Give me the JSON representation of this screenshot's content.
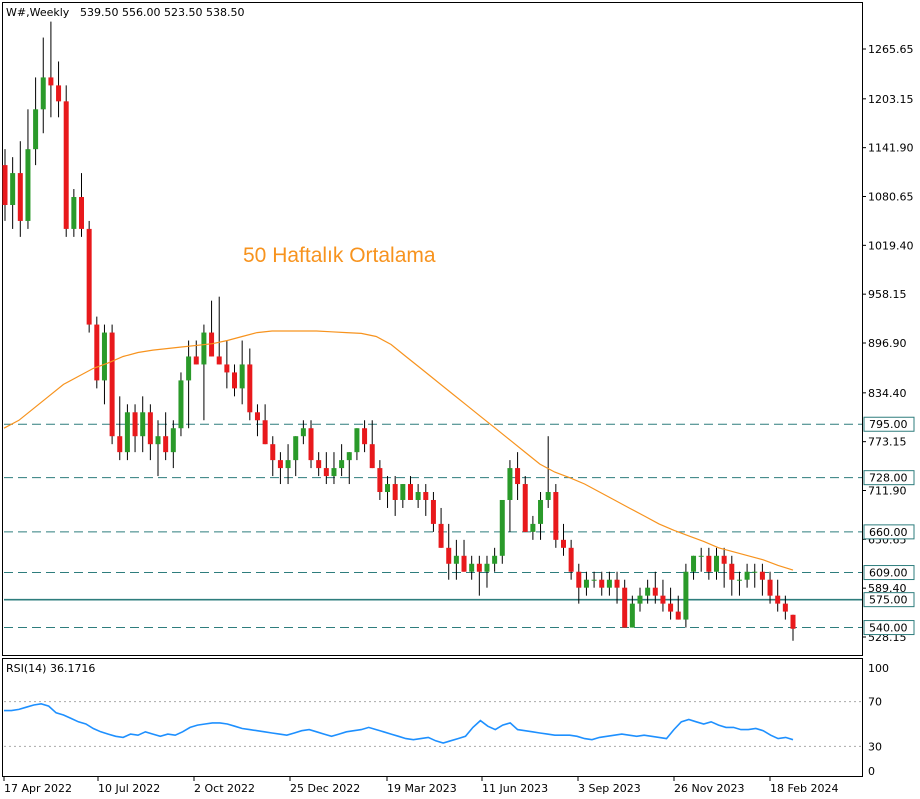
{
  "header": {
    "symbol": "W#,Weekly",
    "ohlc": "539.50 556.00 523.50 538.50"
  },
  "annotation": "50 Haftalık Ortalama",
  "rsi_label": "RSI(14) 36.1716",
  "colors": {
    "bull": "#2a9a2a",
    "bear": "#e8191c",
    "ma": "#f7931e",
    "level": "#2e7d7d",
    "rsi": "#1e90ff"
  },
  "chart_data": [
    {
      "type": "candlestick",
      "title": "W#,Weekly",
      "ylim": [
        510,
        1300
      ],
      "y_ticks": [
        "1265.65",
        "1203.15",
        "1141.90",
        "1080.65",
        "1019.40",
        "958.15",
        "896.90",
        "834.40",
        "773.15",
        "711.90",
        "650.65",
        "589.40",
        "528.15"
      ],
      "x_ticks": [
        "17 Apr 2022",
        "10 Jul 2022",
        "2 Oct 2022",
        "25 Dec 2022",
        "19 Mar 2023",
        "11 Jun 2023",
        "3 Sep 2023",
        "26 Nov 2023",
        "18 Feb 2024"
      ],
      "horizontal_levels": [
        {
          "value": 795.0,
          "label": "795.00",
          "style": "dashed"
        },
        {
          "value": 728.0,
          "label": "728.00",
          "style": "dashed"
        },
        {
          "value": 660.0,
          "label": "660.00",
          "style": "dashed"
        },
        {
          "value": 609.0,
          "label": "609.00",
          "style": "dashed"
        },
        {
          "value": 575.0,
          "label": "575.00",
          "style": "solid"
        },
        {
          "value": 540.0,
          "label": "540.00",
          "style": "dashed"
        }
      ],
      "candles": [
        [
          1120,
          1140,
          1050,
          1070
        ],
        [
          1070,
          1130,
          1040,
          1110
        ],
        [
          1110,
          1150,
          1030,
          1050
        ],
        [
          1050,
          1190,
          1040,
          1140
        ],
        [
          1140,
          1230,
          1120,
          1190
        ],
        [
          1190,
          1280,
          1160,
          1230
        ],
        [
          1230,
          1300,
          1180,
          1220
        ],
        [
          1220,
          1250,
          1180,
          1200
        ],
        [
          1200,
          1220,
          1030,
          1040
        ],
        [
          1040,
          1090,
          1030,
          1080
        ],
        [
          1080,
          1110,
          1030,
          1040
        ],
        [
          1040,
          1050,
          910,
          920
        ],
        [
          920,
          930,
          840,
          850
        ],
        [
          850,
          920,
          820,
          910
        ],
        [
          910,
          920,
          770,
          780
        ],
        [
          780,
          830,
          750,
          760
        ],
        [
          760,
          820,
          750,
          810
        ],
        [
          810,
          820,
          760,
          780
        ],
        [
          780,
          830,
          760,
          810
        ],
        [
          810,
          820,
          750,
          770
        ],
        [
          770,
          800,
          730,
          780
        ],
        [
          780,
          810,
          750,
          760
        ],
        [
          760,
          800,
          740,
          790
        ],
        [
          790,
          860,
          780,
          850
        ],
        [
          850,
          900,
          790,
          880
        ],
        [
          880,
          900,
          870,
          870
        ],
        [
          870,
          920,
          800,
          910
        ],
        [
          910,
          950,
          880,
          880
        ],
        [
          880,
          955,
          870,
          870
        ],
        [
          870,
          900,
          840,
          860
        ],
        [
          860,
          870,
          830,
          840
        ],
        [
          840,
          900,
          820,
          870
        ],
        [
          870,
          890,
          800,
          810
        ],
        [
          810,
          820,
          780,
          800
        ],
        [
          800,
          820,
          770,
          770
        ],
        [
          770,
          780,
          730,
          750
        ],
        [
          750,
          760,
          720,
          740
        ],
        [
          740,
          770,
          720,
          750
        ],
        [
          750,
          780,
          730,
          780
        ],
        [
          780,
          800,
          770,
          790
        ],
        [
          790,
          800,
          740,
          750
        ],
        [
          750,
          760,
          730,
          740
        ],
        [
          740,
          760,
          720,
          730
        ],
        [
          730,
          760,
          720,
          740
        ],
        [
          740,
          770,
          730,
          750
        ],
        [
          750,
          760,
          720,
          760
        ],
        [
          760,
          790,
          750,
          790
        ],
        [
          790,
          800,
          760,
          770
        ],
        [
          770,
          800,
          740,
          740
        ],
        [
          740,
          750,
          700,
          710
        ],
        [
          710,
          730,
          690,
          720
        ],
        [
          720,
          730,
          680,
          700
        ],
        [
          700,
          720,
          690,
          720
        ],
        [
          720,
          730,
          700,
          700
        ],
        [
          700,
          720,
          690,
          710
        ],
        [
          710,
          720,
          680,
          700
        ],
        [
          700,
          710,
          660,
          670
        ],
        [
          670,
          690,
          640,
          640
        ],
        [
          640,
          670,
          600,
          620
        ],
        [
          620,
          650,
          600,
          630
        ],
        [
          630,
          650,
          610,
          610
        ],
        [
          610,
          630,
          600,
          620
        ],
        [
          620,
          630,
          580,
          610
        ],
        [
          610,
          630,
          590,
          620
        ],
        [
          620,
          640,
          610,
          630
        ],
        [
          630,
          700,
          620,
          700
        ],
        [
          700,
          750,
          660,
          740
        ],
        [
          740,
          760,
          700,
          720
        ],
        [
          720,
          730,
          660,
          660
        ],
        [
          660,
          680,
          650,
          670
        ],
        [
          670,
          710,
          650,
          700
        ],
        [
          700,
          780,
          690,
          710
        ],
        [
          710,
          720,
          640,
          650
        ],
        [
          650,
          670,
          630,
          640
        ],
        [
          640,
          650,
          600,
          610
        ],
        [
          610,
          620,
          570,
          590
        ],
        [
          590,
          610,
          580,
          600
        ],
        [
          600,
          610,
          590,
          600
        ],
        [
          600,
          610,
          580,
          590
        ],
        [
          590,
          610,
          580,
          600
        ],
        [
          600,
          610,
          570,
          590
        ],
        [
          590,
          600,
          540,
          540
        ],
        [
          540,
          580,
          540,
          570
        ],
        [
          570,
          590,
          560,
          580
        ],
        [
          580,
          600,
          570,
          590
        ],
        [
          590,
          610,
          570,
          580
        ],
        [
          580,
          600,
          560,
          570
        ],
        [
          570,
          590,
          550,
          560
        ],
        [
          560,
          580,
          550,
          550
        ],
        [
          550,
          620,
          540,
          610
        ],
        [
          610,
          630,
          600,
          630
        ],
        [
          630,
          640,
          610,
          630
        ],
        [
          630,
          640,
          600,
          610
        ],
        [
          610,
          640,
          600,
          630
        ],
        [
          630,
          640,
          590,
          620
        ],
        [
          620,
          630,
          580,
          600
        ],
        [
          600,
          610,
          580,
          600
        ],
        [
          600,
          620,
          590,
          610
        ],
        [
          610,
          620,
          590,
          610
        ],
        [
          610,
          620,
          580,
          600
        ],
        [
          600,
          610,
          570,
          580
        ],
        [
          580,
          600,
          560,
          570
        ],
        [
          570,
          580,
          550,
          560
        ],
        [
          556,
          556,
          523.5,
          538.5
        ]
      ],
      "series": [
        {
          "name": "50 Haftalık Ortalama",
          "kind": "ma",
          "values": [
            790,
            800,
            815,
            830,
            845,
            855,
            865,
            872,
            880,
            885,
            888,
            890,
            892,
            894,
            896,
            900,
            905,
            910,
            912,
            912,
            912,
            912,
            911,
            910,
            909,
            905,
            895,
            880,
            865,
            850,
            835,
            820,
            805,
            790,
            775,
            760,
            745,
            735,
            728,
            720,
            710,
            700,
            690,
            680,
            670,
            662,
            655,
            648,
            640,
            635,
            630,
            625,
            618,
            612
          ]
        }
      ]
    },
    {
      "type": "line",
      "title": "RSI(14) 36.1716",
      "ylim": [
        0,
        100
      ],
      "y_ticks": [
        "100",
        "70",
        "30",
        "0"
      ],
      "levels": [
        70,
        30
      ],
      "series": [
        {
          "name": "RSI(14)",
          "values": [
            62,
            62,
            63,
            65,
            67,
            68,
            66,
            60,
            58,
            55,
            52,
            50,
            46,
            43,
            41,
            39,
            38,
            41,
            40,
            43,
            41,
            39,
            41,
            40,
            43,
            47,
            49,
            50,
            51,
            51,
            50,
            48,
            46,
            45,
            44,
            43,
            42,
            41,
            40,
            42,
            44,
            45,
            43,
            41,
            39,
            41,
            43,
            44,
            45,
            47,
            45,
            43,
            41,
            39,
            37,
            36,
            37,
            38,
            35,
            33,
            35,
            37,
            39,
            47,
            53,
            48,
            45,
            49,
            51,
            45,
            44,
            43,
            42,
            41,
            40,
            40,
            40,
            39,
            37,
            36,
            38,
            39,
            40,
            41,
            40,
            39,
            40,
            39,
            38,
            37,
            45,
            52,
            54,
            52,
            50,
            52,
            49,
            47,
            47,
            45,
            45,
            46,
            44,
            40,
            37,
            38,
            36
          ]
        }
      ]
    }
  ]
}
